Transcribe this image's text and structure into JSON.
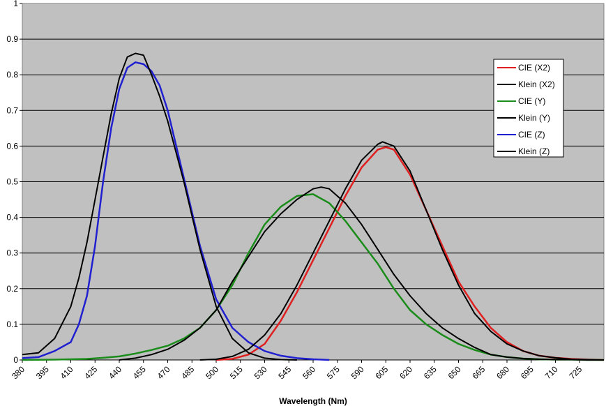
{
  "chart_data": {
    "type": "line",
    "title": "",
    "xlabel": "Wavelength (Nm)",
    "ylabel": "",
    "xlim": [
      380,
      740
    ],
    "ylim": [
      0,
      1
    ],
    "yticks": [
      "0",
      "0.1",
      "0.2",
      "0.3",
      "0.4",
      "0.5",
      "0.6",
      "0.7",
      "0.8",
      "0.9",
      "1"
    ],
    "xticks": [
      "380",
      "395",
      "410",
      "425",
      "440",
      "455",
      "470",
      "485",
      "500",
      "515",
      "530",
      "545",
      "560",
      "575",
      "590",
      "605",
      "620",
      "635",
      "650",
      "665",
      "680",
      "695",
      "710",
      "725"
    ],
    "grid": "horizontal",
    "plot_background": "#c0c0c0",
    "legend_position": "right",
    "series": [
      {
        "name": "CIE (X2)",
        "color": "#e02020",
        "x": [
          500,
          510,
          520,
          530,
          540,
          550,
          560,
          570,
          580,
          590,
          600,
          605,
          610,
          620,
          630,
          640,
          650,
          660,
          670,
          680,
          690,
          700,
          710,
          720,
          730,
          740
        ],
        "y": [
          0,
          0.003,
          0.015,
          0.045,
          0.11,
          0.19,
          0.28,
          0.37,
          0.46,
          0.54,
          0.59,
          0.597,
          0.59,
          0.52,
          0.42,
          0.32,
          0.22,
          0.15,
          0.09,
          0.05,
          0.025,
          0.012,
          0.006,
          0.003,
          0.001,
          0
        ]
      },
      {
        "name": "Klein (X2)",
        "color": "#000000",
        "x": [
          490,
          500,
          510,
          520,
          530,
          540,
          550,
          560,
          570,
          580,
          590,
          600,
          603,
          610,
          620,
          630,
          640,
          650,
          660,
          670,
          680,
          690,
          700,
          710,
          720,
          730,
          740
        ],
        "y": [
          0,
          0.002,
          0.01,
          0.03,
          0.07,
          0.13,
          0.21,
          0.3,
          0.39,
          0.48,
          0.56,
          0.605,
          0.612,
          0.6,
          0.53,
          0.42,
          0.31,
          0.21,
          0.13,
          0.08,
          0.045,
          0.025,
          0.012,
          0.006,
          0.002,
          0.001,
          0
        ]
      },
      {
        "name": "CIE (Y)",
        "color": "#1a8c1a",
        "x": [
          380,
          400,
          420,
          430,
          440,
          450,
          460,
          470,
          480,
          490,
          500,
          510,
          520,
          530,
          540,
          550,
          560,
          570,
          580,
          590,
          600,
          610,
          620,
          630,
          640,
          650,
          660,
          670,
          680,
          690,
          700,
          710,
          720,
          730,
          740
        ],
        "y": [
          0,
          0.001,
          0.003,
          0.006,
          0.01,
          0.018,
          0.028,
          0.04,
          0.06,
          0.09,
          0.14,
          0.21,
          0.3,
          0.38,
          0.43,
          0.46,
          0.465,
          0.44,
          0.39,
          0.33,
          0.27,
          0.2,
          0.14,
          0.1,
          0.07,
          0.045,
          0.028,
          0.015,
          0.008,
          0.004,
          0.002,
          0.001,
          0.001,
          0,
          0
        ]
      },
      {
        "name": "Klein (Y)",
        "color": "#000000",
        "x": [
          440,
          450,
          460,
          470,
          480,
          490,
          500,
          510,
          520,
          530,
          540,
          550,
          560,
          565,
          570,
          580,
          590,
          600,
          610,
          620,
          630,
          640,
          650,
          660,
          670,
          680,
          690,
          700,
          710,
          720,
          730,
          740
        ],
        "y": [
          0,
          0.005,
          0.015,
          0.03,
          0.055,
          0.09,
          0.14,
          0.22,
          0.29,
          0.36,
          0.41,
          0.45,
          0.48,
          0.485,
          0.48,
          0.44,
          0.38,
          0.31,
          0.24,
          0.18,
          0.13,
          0.09,
          0.06,
          0.035,
          0.015,
          0.008,
          0.004,
          0.002,
          0.001,
          0.001,
          0,
          0
        ]
      },
      {
        "name": "CIE (Z)",
        "color": "#2020d0",
        "x": [
          380,
          390,
          400,
          410,
          415,
          420,
          425,
          430,
          435,
          440,
          445,
          450,
          455,
          460,
          465,
          470,
          480,
          490,
          500,
          510,
          520,
          530,
          540,
          550,
          560,
          570
        ],
        "y": [
          0.005,
          0.008,
          0.025,
          0.05,
          0.1,
          0.18,
          0.32,
          0.5,
          0.65,
          0.76,
          0.82,
          0.835,
          0.83,
          0.81,
          0.77,
          0.7,
          0.51,
          0.32,
          0.17,
          0.09,
          0.05,
          0.025,
          0.012,
          0.005,
          0.002,
          0
        ]
      },
      {
        "name": "Klein (Z)",
        "color": "#000000",
        "x": [
          380,
          390,
          400,
          410,
          415,
          420,
          425,
          430,
          435,
          440,
          445,
          450,
          455,
          460,
          465,
          470,
          480,
          490,
          500,
          510,
          520,
          530,
          540,
          550
        ],
        "y": [
          0.015,
          0.02,
          0.06,
          0.15,
          0.23,
          0.33,
          0.45,
          0.57,
          0.69,
          0.79,
          0.85,
          0.86,
          0.855,
          0.8,
          0.74,
          0.67,
          0.5,
          0.31,
          0.15,
          0.06,
          0.02,
          0.005,
          0.001,
          0
        ]
      }
    ]
  }
}
